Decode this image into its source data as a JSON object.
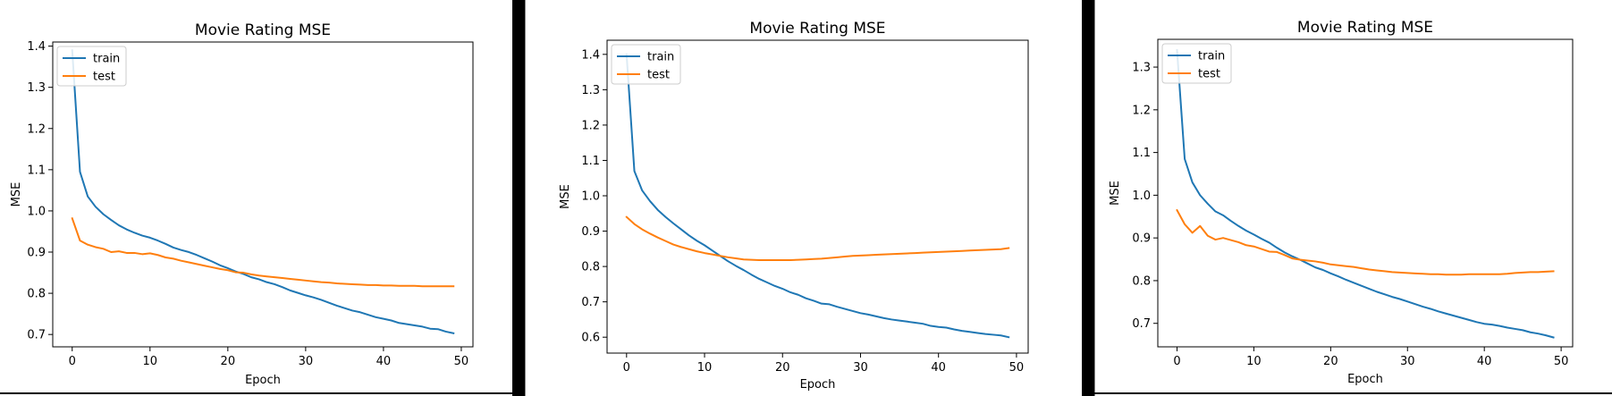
{
  "colors": {
    "train": "#1f77b4",
    "test": "#ff7f0e",
    "separator": "#000000",
    "axis": "#000000",
    "background": "#ffffff"
  },
  "chart_data": [
    {
      "type": "line",
      "title": "Movie Rating MSE",
      "xlabel": "Epoch",
      "ylabel": "MSE",
      "xlim": [
        -2.5,
        51.5
      ],
      "ylim": [
        0.67,
        1.41
      ],
      "xticks": [
        0,
        10,
        20,
        30,
        40,
        50
      ],
      "yticks": [
        0.7,
        0.8,
        0.9,
        1.0,
        1.1,
        1.2,
        1.3,
        1.4
      ],
      "grid": false,
      "legend_position": "upper left",
      "series": [
        {
          "name": "train",
          "color": "#1f77b4",
          "x": [
            0,
            1,
            2,
            3,
            4,
            5,
            6,
            7,
            8,
            9,
            10,
            11,
            12,
            13,
            14,
            15,
            16,
            17,
            18,
            19,
            20,
            21,
            22,
            23,
            24,
            25,
            26,
            27,
            28,
            29,
            30,
            31,
            32,
            33,
            34,
            35,
            36,
            37,
            38,
            39,
            40,
            41,
            42,
            43,
            44,
            45,
            46,
            47,
            48,
            49
          ],
          "values": [
            1.39,
            1.095,
            1.035,
            1.01,
            0.992,
            0.978,
            0.965,
            0.955,
            0.947,
            0.94,
            0.935,
            0.928,
            0.92,
            0.911,
            0.905,
            0.9,
            0.893,
            0.885,
            0.877,
            0.868,
            0.861,
            0.853,
            0.847,
            0.839,
            0.834,
            0.827,
            0.822,
            0.815,
            0.807,
            0.801,
            0.795,
            0.79,
            0.784,
            0.777,
            0.77,
            0.764,
            0.758,
            0.754,
            0.748,
            0.742,
            0.738,
            0.734,
            0.728,
            0.725,
            0.722,
            0.719,
            0.714,
            0.713,
            0.707,
            0.703
          ]
        },
        {
          "name": "test",
          "color": "#ff7f0e",
          "x": [
            0,
            1,
            2,
            3,
            4,
            5,
            6,
            7,
            8,
            9,
            10,
            11,
            12,
            13,
            14,
            15,
            16,
            17,
            18,
            19,
            20,
            21,
            22,
            23,
            24,
            25,
            26,
            27,
            28,
            29,
            30,
            31,
            32,
            33,
            34,
            35,
            36,
            37,
            38,
            39,
            40,
            41,
            42,
            43,
            44,
            45,
            46,
            47,
            48,
            49
          ],
          "values": [
            0.982,
            0.928,
            0.918,
            0.912,
            0.908,
            0.9,
            0.902,
            0.898,
            0.898,
            0.895,
            0.897,
            0.893,
            0.887,
            0.884,
            0.879,
            0.875,
            0.871,
            0.867,
            0.863,
            0.859,
            0.856,
            0.851,
            0.85,
            0.846,
            0.843,
            0.841,
            0.839,
            0.837,
            0.835,
            0.833,
            0.831,
            0.829,
            0.827,
            0.826,
            0.824,
            0.823,
            0.822,
            0.821,
            0.82,
            0.82,
            0.819,
            0.819,
            0.818,
            0.818,
            0.818,
            0.817,
            0.817,
            0.817,
            0.817,
            0.817
          ]
        }
      ]
    },
    {
      "type": "line",
      "title": "Movie Rating MSE",
      "xlabel": "Epoch",
      "ylabel": "MSE",
      "xlim": [
        -2.5,
        51.5
      ],
      "ylim": [
        0.555,
        1.44
      ],
      "xticks": [
        0,
        10,
        20,
        30,
        40,
        50
      ],
      "yticks": [
        0.6,
        0.7,
        0.8,
        0.9,
        1.0,
        1.1,
        1.2,
        1.3,
        1.4
      ],
      "grid": false,
      "legend_position": "upper left",
      "series": [
        {
          "name": "train",
          "color": "#1f77b4",
          "x": [
            0,
            1,
            2,
            3,
            4,
            5,
            6,
            7,
            8,
            9,
            10,
            11,
            12,
            13,
            14,
            15,
            16,
            17,
            18,
            19,
            20,
            21,
            22,
            23,
            24,
            25,
            26,
            27,
            28,
            29,
            30,
            31,
            32,
            33,
            34,
            35,
            36,
            37,
            38,
            39,
            40,
            41,
            42,
            43,
            44,
            45,
            46,
            47,
            48,
            49
          ],
          "values": [
            1.4,
            1.07,
            1.015,
            0.985,
            0.96,
            0.94,
            0.922,
            0.905,
            0.888,
            0.873,
            0.86,
            0.845,
            0.83,
            0.815,
            0.802,
            0.79,
            0.777,
            0.765,
            0.755,
            0.745,
            0.737,
            0.727,
            0.72,
            0.71,
            0.703,
            0.695,
            0.693,
            0.686,
            0.68,
            0.674,
            0.668,
            0.664,
            0.659,
            0.654,
            0.65,
            0.647,
            0.644,
            0.641,
            0.638,
            0.632,
            0.629,
            0.627,
            0.622,
            0.618,
            0.615,
            0.612,
            0.609,
            0.607,
            0.605,
            0.6
          ]
        },
        {
          "name": "test",
          "color": "#ff7f0e",
          "x": [
            0,
            1,
            2,
            3,
            4,
            5,
            6,
            7,
            8,
            9,
            10,
            11,
            12,
            13,
            14,
            15,
            16,
            17,
            18,
            19,
            20,
            21,
            22,
            23,
            24,
            25,
            26,
            27,
            28,
            29,
            30,
            31,
            32,
            33,
            34,
            35,
            36,
            37,
            38,
            39,
            40,
            41,
            42,
            43,
            44,
            45,
            46,
            47,
            48,
            49
          ],
          "values": [
            0.94,
            0.92,
            0.905,
            0.893,
            0.882,
            0.872,
            0.862,
            0.855,
            0.849,
            0.843,
            0.838,
            0.834,
            0.83,
            0.826,
            0.823,
            0.82,
            0.819,
            0.818,
            0.818,
            0.818,
            0.818,
            0.818,
            0.819,
            0.82,
            0.821,
            0.822,
            0.824,
            0.826,
            0.828,
            0.83,
            0.831,
            0.832,
            0.833,
            0.834,
            0.835,
            0.836,
            0.837,
            0.838,
            0.839,
            0.84,
            0.841,
            0.842,
            0.843,
            0.844,
            0.845,
            0.846,
            0.847,
            0.848,
            0.849,
            0.852
          ]
        }
      ]
    },
    {
      "type": "line",
      "title": "Movie Rating MSE",
      "xlabel": "Epoch",
      "ylabel": "MSE",
      "xlim": [
        -2.5,
        51.5
      ],
      "ylim": [
        0.645,
        1.365
      ],
      "xticks": [
        0,
        10,
        20,
        30,
        40,
        50
      ],
      "yticks": [
        0.7,
        0.8,
        0.9,
        1.0,
        1.1,
        1.2,
        1.3
      ],
      "grid": false,
      "legend_position": "upper left",
      "series": [
        {
          "name": "train",
          "color": "#1f77b4",
          "x": [
            0,
            1,
            2,
            3,
            4,
            5,
            6,
            7,
            8,
            9,
            10,
            11,
            12,
            13,
            14,
            15,
            16,
            17,
            18,
            19,
            20,
            21,
            22,
            23,
            24,
            25,
            26,
            27,
            28,
            29,
            30,
            31,
            32,
            33,
            34,
            35,
            36,
            37,
            38,
            39,
            40,
            41,
            42,
            43,
            44,
            45,
            46,
            47,
            48,
            49
          ],
          "values": [
            1.34,
            1.085,
            1.03,
            1.0,
            0.98,
            0.962,
            0.953,
            0.94,
            0.928,
            0.917,
            0.908,
            0.898,
            0.889,
            0.877,
            0.866,
            0.857,
            0.849,
            0.84,
            0.831,
            0.825,
            0.817,
            0.81,
            0.802,
            0.795,
            0.788,
            0.781,
            0.774,
            0.768,
            0.762,
            0.757,
            0.751,
            0.745,
            0.739,
            0.734,
            0.728,
            0.723,
            0.718,
            0.713,
            0.708,
            0.703,
            0.699,
            0.697,
            0.694,
            0.69,
            0.687,
            0.684,
            0.679,
            0.676,
            0.672,
            0.667
          ]
        },
        {
          "name": "test",
          "color": "#ff7f0e",
          "x": [
            0,
            1,
            2,
            3,
            4,
            5,
            6,
            7,
            8,
            9,
            10,
            11,
            12,
            13,
            14,
            15,
            16,
            17,
            18,
            19,
            20,
            21,
            22,
            23,
            24,
            25,
            26,
            27,
            28,
            29,
            30,
            31,
            32,
            33,
            34,
            35,
            36,
            37,
            38,
            39,
            40,
            41,
            42,
            43,
            44,
            45,
            46,
            47,
            48,
            49
          ],
          "values": [
            0.965,
            0.932,
            0.912,
            0.928,
            0.905,
            0.896,
            0.9,
            0.895,
            0.89,
            0.883,
            0.88,
            0.874,
            0.868,
            0.867,
            0.86,
            0.852,
            0.849,
            0.847,
            0.845,
            0.842,
            0.838,
            0.836,
            0.834,
            0.832,
            0.829,
            0.826,
            0.824,
            0.822,
            0.82,
            0.819,
            0.818,
            0.817,
            0.816,
            0.815,
            0.815,
            0.814,
            0.814,
            0.814,
            0.815,
            0.815,
            0.815,
            0.815,
            0.815,
            0.816,
            0.818,
            0.819,
            0.82,
            0.82,
            0.821,
            0.822
          ]
        }
      ]
    }
  ]
}
